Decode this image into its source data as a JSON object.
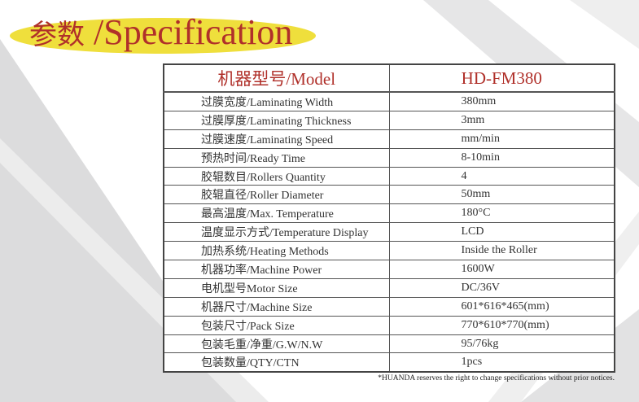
{
  "title": {
    "cn": "参数",
    "sep": " /",
    "en": "Specification"
  },
  "colors": {
    "title": "#b0302a",
    "ellipse": "#efdf3c",
    "stripe": "#dcdcdd"
  },
  "table": {
    "header": {
      "label": "机器型号/Model",
      "value": "HD-FM380"
    },
    "rows": [
      {
        "label": "过膜宽度/Laminating Width",
        "value": "380mm"
      },
      {
        "label": "过膜厚度/Laminating Thickness",
        "value": "3mm"
      },
      {
        "label": "过膜速度/Laminating Speed",
        "value": "mm/min"
      },
      {
        "label": "预热时间/Ready Time",
        "value": "8-10min"
      },
      {
        "label": "胶辊数目/Rollers Quantity",
        "value": "4"
      },
      {
        "label": "胶辊直径/Roller Diameter",
        "value": "50mm"
      },
      {
        "label": "最高温度/Max. Temperature",
        "value": "180°C"
      },
      {
        "label": "温度显示方式/Temperature Display",
        "value": "LCD"
      },
      {
        "label": "加热系统/Heating Methods",
        "value": "Inside the Roller"
      },
      {
        "label": "机器功率/Machine Power",
        "value": "1600W"
      },
      {
        "label": "电机型号Motor Size",
        "value": "DC/36V"
      },
      {
        "label": "机器尺寸/Machine Size",
        "value": "601*616*465(mm)"
      },
      {
        "label": "包装尺寸/Pack Size",
        "value": "770*610*770(mm)"
      },
      {
        "label": "包装毛重/净重/G.W/N.W",
        "value": "95/76kg"
      },
      {
        "label": "包装数量/QTY/CTN",
        "value": "1pcs"
      }
    ]
  },
  "note": "*HUANDA reserves the right to change specifications without prior notices."
}
